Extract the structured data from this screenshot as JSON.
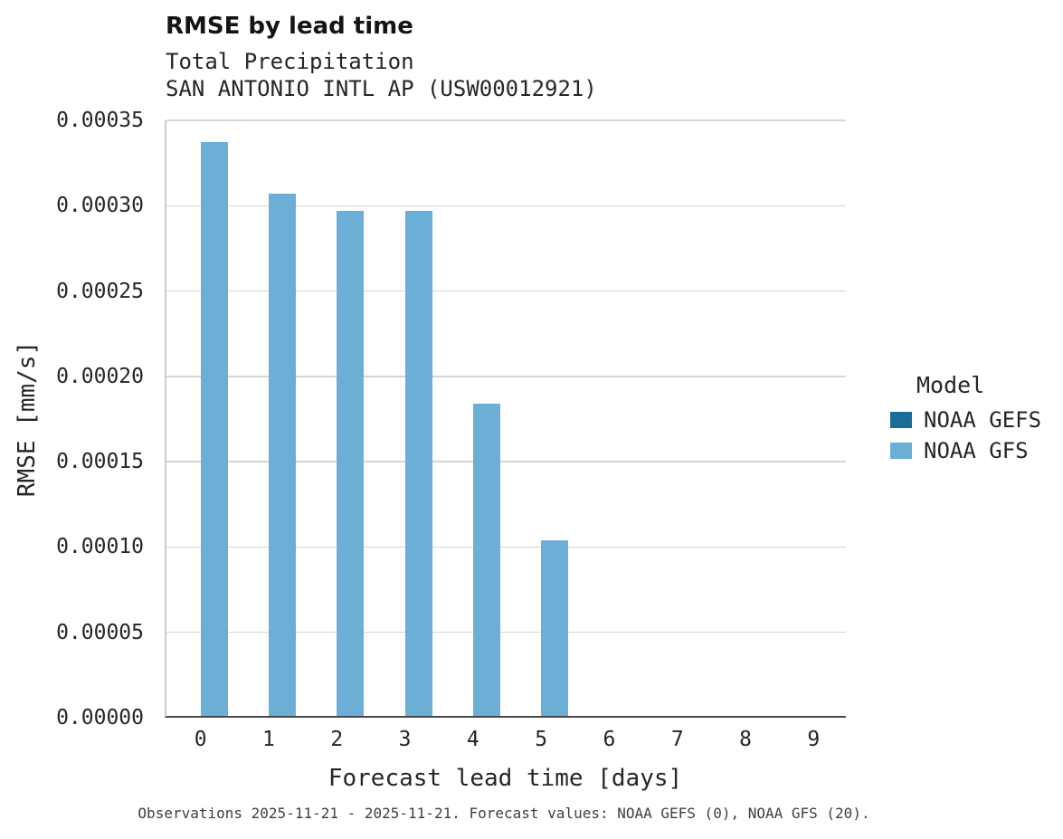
{
  "header": {
    "title": "RMSE by lead time",
    "subtitle1": "Total Precipitation",
    "subtitle2": "SAN ANTONIO INTL AP (USW00012921)"
  },
  "legend": {
    "title": "Model",
    "items": [
      {
        "label": "NOAA GEFS",
        "color": "#1a6d96"
      },
      {
        "label": "NOAA GFS",
        "color": "#6baed6"
      }
    ]
  },
  "caption": "Observations 2025-11-21 - 2025-11-21. Forecast values: NOAA GEFS (0), NOAA GFS (20).",
  "chart_data": {
    "type": "bar",
    "title": "RMSE by lead time",
    "subtitle": [
      "Total Precipitation",
      "SAN ANTONIO INTL AP (USW00012921)"
    ],
    "xlabel": "Forecast lead time [days]",
    "ylabel": "RMSE [mm/s]",
    "categories": [
      "0",
      "1",
      "2",
      "3",
      "4",
      "5",
      "6",
      "7",
      "8",
      "9"
    ],
    "series": [
      {
        "name": "NOAA GEFS",
        "color": "#1a6d96",
        "values": [
          null,
          null,
          null,
          null,
          null,
          null,
          null,
          null,
          null,
          null
        ]
      },
      {
        "name": "NOAA GFS",
        "color": "#6baed6",
        "values": [
          0.000336,
          0.000306,
          0.000296,
          0.000296,
          0.000183,
          0.000103,
          null,
          null,
          null,
          null
        ]
      }
    ],
    "ylim": [
      0,
      0.00035
    ],
    "yticks": [
      0,
      5e-05,
      0.0001,
      0.00015,
      0.0002,
      0.00025,
      0.0003,
      0.00035
    ],
    "ytick_labels": [
      "0.00000",
      "0.00005",
      "0.00010",
      "0.00015",
      "0.00020",
      "0.00025",
      "0.00030",
      "0.00035"
    ],
    "grid": "horizontal",
    "legend_title": "Model",
    "legend_position": "right"
  }
}
